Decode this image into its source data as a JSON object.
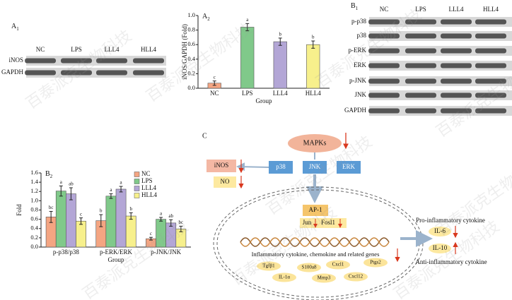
{
  "watermark": "百泰派克生物科技",
  "blots": [
    {
      "panel": {
        "letter": "A",
        "sub": "1"
      },
      "lanes": [
        "NC",
        "LPS",
        "LLL4",
        "HLL4"
      ],
      "rows": [
        "iNOS",
        "GAPDH"
      ]
    },
    {
      "panel": {
        "letter": "B",
        "sub": "1"
      },
      "lanes": [
        "NC",
        "LPS",
        "LLL4",
        "HLL4"
      ],
      "rows": [
        "p-p38",
        "p38",
        "p-ERK",
        "ERK",
        "p-JNK",
        "JNK",
        "GAPDH"
      ]
    }
  ],
  "chart_data": [
    {
      "type": "bar",
      "panel": {
        "letter": "A",
        "sub": "2"
      },
      "ylabel": "iNOS/GAPDH (Fold)",
      "xlabel": "Group",
      "categories": [
        "NC",
        "LPS",
        "LLL4",
        "HLL4"
      ],
      "values": [
        0.07,
        0.84,
        0.64,
        0.6
      ],
      "errors": [
        0.03,
        0.05,
        0.05,
        0.05
      ],
      "annotations": [
        "c",
        "a",
        "b",
        "b"
      ],
      "colors": [
        "#f4a582",
        "#80c98a",
        "#b3a6d6",
        "#f7f08c"
      ],
      "ylim": [
        0,
        1
      ],
      "yticks": [
        {
          "value": 0,
          "label": "0.0"
        },
        0.2,
        0.4,
        0.6,
        0.8,
        {
          "value": 1,
          "label": "1.0"
        }
      ]
    },
    {
      "type": "grouped_bar",
      "panel": {
        "letter": "B",
        "sub": "2"
      },
      "ylabel": "Fold",
      "xlabel": "Group",
      "categories": [
        "p-p38/p38",
        "p-ERK/ERK",
        "p-JNK/JNK"
      ],
      "legend": "upper right",
      "series": [
        {
          "name": "NC",
          "color": "#f4a582",
          "values": [
            0.65,
            0.57,
            0.18
          ],
          "errors": [
            0.12,
            0.13,
            0.03
          ],
          "annotations": [
            "bc",
            "b",
            "c"
          ]
        },
        {
          "name": "LPS",
          "color": "#80c98a",
          "values": [
            1.21,
            1.1,
            0.6
          ],
          "errors": [
            0.11,
            0.05,
            0.04
          ],
          "annotations": [
            "a",
            "a",
            "a"
          ]
        },
        {
          "name": "LLL4",
          "color": "#b3a6d6",
          "values": [
            1.15,
            1.25,
            0.52
          ],
          "errors": [
            0.13,
            0.06,
            0.07
          ],
          "annotations": [
            "ab",
            "a",
            "ab"
          ]
        },
        {
          "name": "HLL4",
          "color": "#f7f08c",
          "values": [
            0.56,
            0.67,
            0.39
          ],
          "errors": [
            0.07,
            0.07,
            0.06
          ],
          "annotations": [
            "c",
            "b",
            "bc"
          ]
        }
      ],
      "ylim": [
        0,
        1.6
      ],
      "yticks": [
        {
          "value": 0,
          "label": "0.0"
        },
        0.2,
        0.4,
        0.6,
        0.8,
        {
          "value": 1,
          "label": "1.0"
        },
        1.2,
        1.4,
        1.6
      ]
    }
  ],
  "diagram": {
    "panel": "C",
    "mapks": "MAPKs",
    "kinases": [
      "p38",
      "JNK",
      "ERK"
    ],
    "products": [
      "iNOS",
      "NO"
    ],
    "tf": "AP-1",
    "tf_genes": [
      "Jun",
      "Fosl1"
    ],
    "genes_title": "Inflammatory cytokine, chemokine and related genes",
    "genes": [
      "Tgfβ1",
      "IL-1α",
      "S100a8",
      "Mmp3",
      "Cxcl1",
      "Cxcl12",
      "Ptgs2"
    ],
    "pro_title": "Pro-inflammatory cytokine",
    "cytokines": [
      "IL-6",
      "IL-10"
    ],
    "anti_title": "Anti-inflammatory cytokine"
  }
}
